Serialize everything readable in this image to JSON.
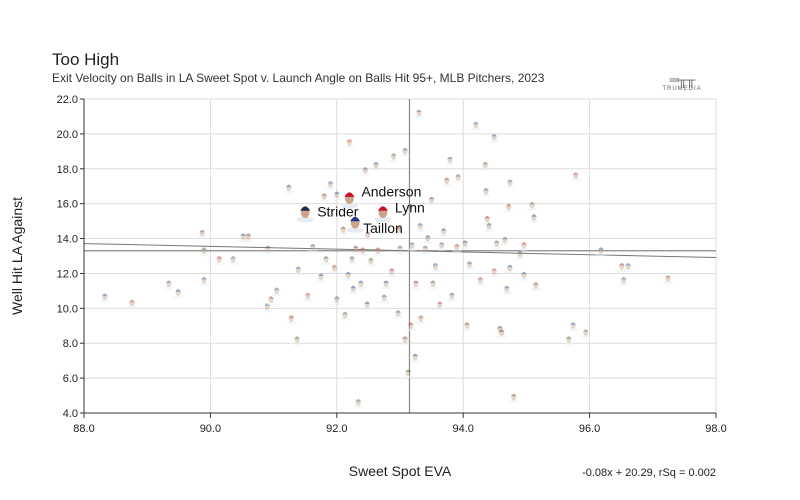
{
  "chart_data": {
    "type": "scatter",
    "title": "Too High",
    "subtitle": "Exit Velocity on Balls in LA Sweet Spot v. Launch Angle on Balls Hit 95+, MLB Pitchers, 2023",
    "xlabel": "Sweet Spot EVA",
    "ylabel": "Well Hit LA Against",
    "xlim": [
      88,
      98
    ],
    "ylim": [
      4,
      22
    ],
    "xticks": [
      "88.0",
      "90.0",
      "92.0",
      "94.0",
      "96.0",
      "98.0"
    ],
    "yticks": [
      "4.0",
      "6.0",
      "8.0",
      "10.0",
      "12.0",
      "14.0",
      "16.0",
      "18.0",
      "20.0",
      "22.0"
    ],
    "grid": true,
    "markers": "player headshots",
    "mean_x": 93.15,
    "mean_y": 13.3,
    "trendline": {
      "slope": -0.08,
      "intercept": 20.29,
      "label": "-0.08x + 20.29, rSq = 0.002"
    },
    "highlighted": [
      {
        "name": "Strider",
        "x": 91.5,
        "y": 15.5
      },
      {
        "name": "Anderson",
        "x": 92.2,
        "y": 16.3
      },
      {
        "name": "Taillon",
        "x": 92.29,
        "y": 14.9
      },
      {
        "name": "Lynn",
        "x": 92.73,
        "y": 15.5
      }
    ],
    "points": [
      [
        88.33,
        10.65
      ],
      [
        88.76,
        10.3
      ],
      [
        89.34,
        11.4
      ],
      [
        89.49,
        10.9
      ],
      [
        89.87,
        14.3
      ],
      [
        89.9,
        13.3
      ],
      [
        89.9,
        11.6
      ],
      [
        90.14,
        12.8
      ],
      [
        90.36,
        12.8
      ],
      [
        90.52,
        14.1
      ],
      [
        90.6,
        14.1
      ],
      [
        90.91,
        13.4
      ],
      [
        90.9,
        10.1
      ],
      [
        90.96,
        10.5
      ],
      [
        91.05,
        11.0
      ],
      [
        91.24,
        16.9
      ],
      [
        91.28,
        9.4
      ],
      [
        91.37,
        8.2
      ],
      [
        91.39,
        12.2
      ],
      [
        91.54,
        10.7
      ],
      [
        91.62,
        13.5
      ],
      [
        91.75,
        11.8
      ],
      [
        91.8,
        16.4
      ],
      [
        91.83,
        12.8
      ],
      [
        91.9,
        17.1
      ],
      [
        91.96,
        12.3
      ],
      [
        92.0,
        10.5
      ],
      [
        92.0,
        16.5
      ],
      [
        92.1,
        14.5
      ],
      [
        92.13,
        9.6
      ],
      [
        92.18,
        11.9
      ],
      [
        92.2,
        19.5
      ],
      [
        92.24,
        12.8
      ],
      [
        92.26,
        11.1
      ],
      [
        92.3,
        13.4
      ],
      [
        92.34,
        4.6
      ],
      [
        92.38,
        11.4
      ],
      [
        92.41,
        13.3
      ],
      [
        92.45,
        17.9
      ],
      [
        92.48,
        10.2
      ],
      [
        92.49,
        14.2
      ],
      [
        92.54,
        12.7
      ],
      [
        92.62,
        18.2
      ],
      [
        92.65,
        13.3
      ],
      [
        92.75,
        10.6
      ],
      [
        92.78,
        11.4
      ],
      [
        92.87,
        12.1
      ],
      [
        92.9,
        18.7
      ],
      [
        92.97,
        9.7
      ],
      [
        92.98,
        14.5
      ],
      [
        93.0,
        13.4
      ],
      [
        93.08,
        19.0
      ],
      [
        93.08,
        8.2
      ],
      [
        93.13,
        6.3
      ],
      [
        93.16,
        15.8
      ],
      [
        93.17,
        9.0
      ],
      [
        93.19,
        13.6
      ],
      [
        93.24,
        7.2
      ],
      [
        93.25,
        11.4
      ],
      [
        93.3,
        21.2
      ],
      [
        93.32,
        14.7
      ],
      [
        93.33,
        9.4
      ],
      [
        93.4,
        13.4
      ],
      [
        93.44,
        14.0
      ],
      [
        93.5,
        16.2
      ],
      [
        93.52,
        11.4
      ],
      [
        93.56,
        12.4
      ],
      [
        93.63,
        10.2
      ],
      [
        93.66,
        13.6
      ],
      [
        93.69,
        14.4
      ],
      [
        93.74,
        17.3
      ],
      [
        93.79,
        18.5
      ],
      [
        93.82,
        10.7
      ],
      [
        93.9,
        13.5
      ],
      [
        93.92,
        17.5
      ],
      [
        94.03,
        13.7
      ],
      [
        94.06,
        9.0
      ],
      [
        94.1,
        12.5
      ],
      [
        94.2,
        20.5
      ],
      [
        94.27,
        11.6
      ],
      [
        94.35,
        18.2
      ],
      [
        94.36,
        16.7
      ],
      [
        94.38,
        15.1
      ],
      [
        94.41,
        14.7
      ],
      [
        94.49,
        19.8
      ],
      [
        94.49,
        12.1
      ],
      [
        94.53,
        13.7
      ],
      [
        94.58,
        8.8
      ],
      [
        94.61,
        8.6
      ],
      [
        94.66,
        13.9
      ],
      [
        94.69,
        11.1
      ],
      [
        94.72,
        15.8
      ],
      [
        94.74,
        17.2
      ],
      [
        94.74,
        12.3
      ],
      [
        94.8,
        4.9
      ],
      [
        94.9,
        13.1
      ],
      [
        94.96,
        11.9
      ],
      [
        94.96,
        13.6
      ],
      [
        95.09,
        15.9
      ],
      [
        95.12,
        15.2
      ],
      [
        95.15,
        11.3
      ],
      [
        95.67,
        8.2
      ],
      [
        95.74,
        9.0
      ],
      [
        95.78,
        17.6
      ],
      [
        95.94,
        8.6
      ],
      [
        96.18,
        13.3
      ],
      [
        96.51,
        12.4
      ],
      [
        96.54,
        11.6
      ],
      [
        96.61,
        12.4
      ],
      [
        97.24,
        11.7
      ]
    ]
  },
  "branding": {
    "logo_text": "TRUMEDIA"
  },
  "colors": {
    "grid": "#dddddd",
    "reference": "#888888",
    "axis": "#333333"
  }
}
